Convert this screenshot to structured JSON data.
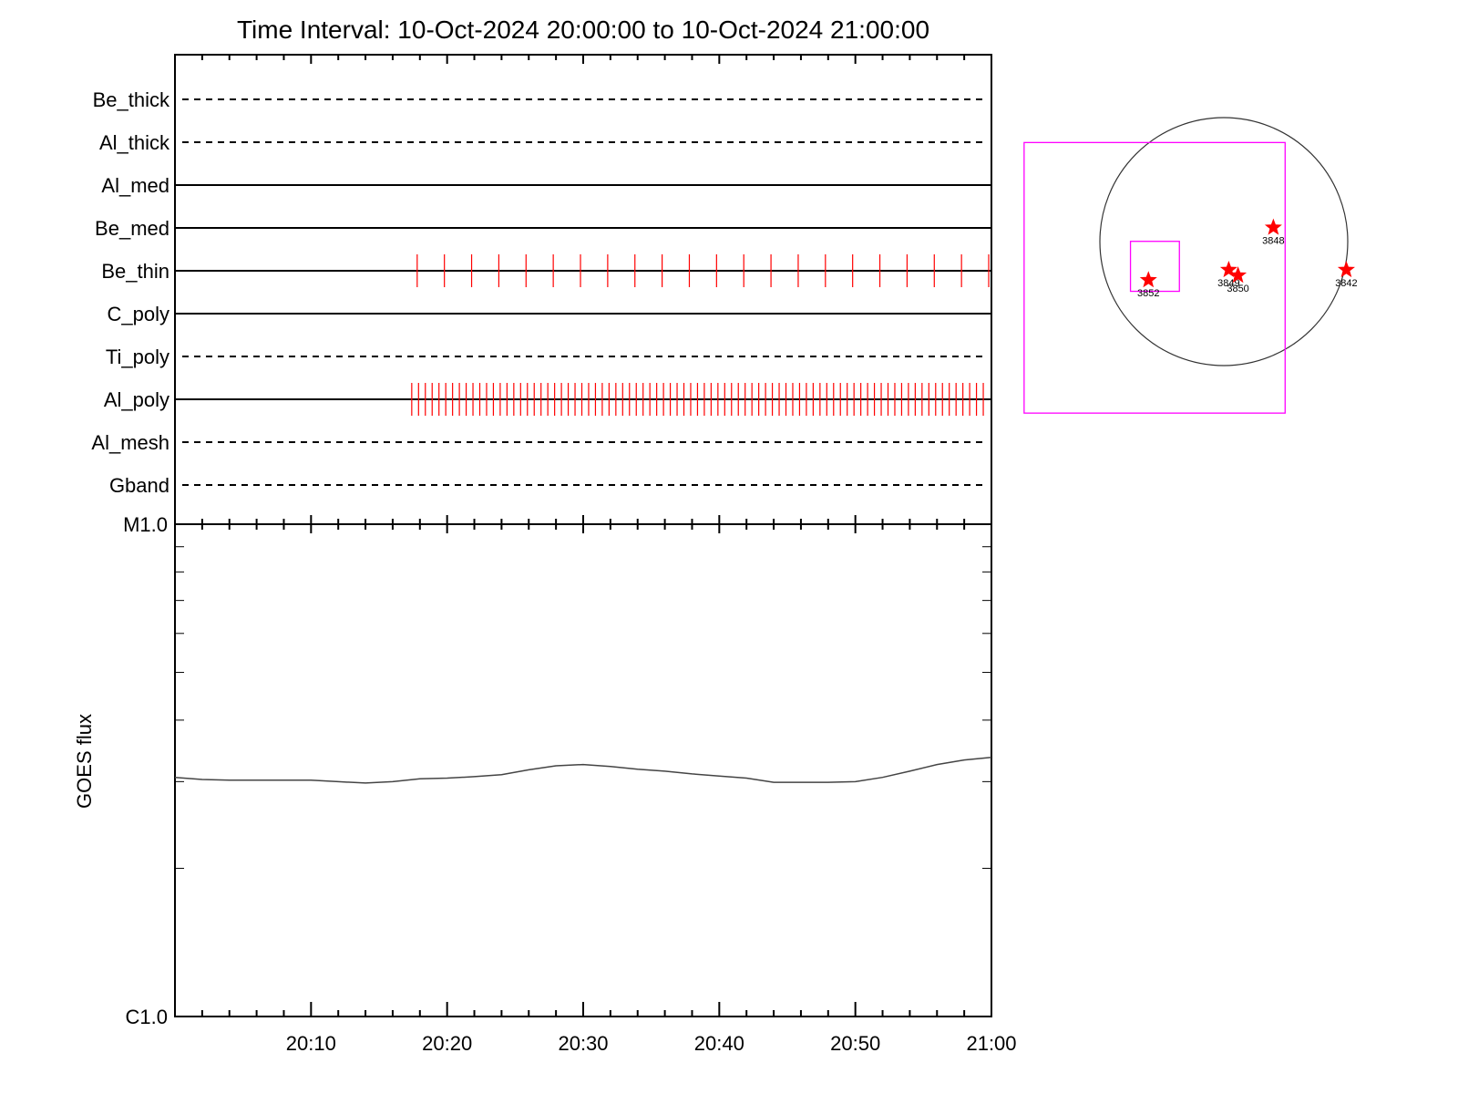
{
  "title": "Time Interval: 10-Oct-2024 20:00:00 to 10-Oct-2024 21:00:00",
  "colors": {
    "axis": "#000000",
    "filter_line": "#000000",
    "exposure_tick": "#ff0000",
    "goes_line": "#444444",
    "fov_box": "#ff00ff",
    "sun_disk": "#333333",
    "star": "#ff0000"
  },
  "chart_data": [
    {
      "type": "timeline",
      "name": "filter-timeline",
      "x_unit": "minutes after 20:00",
      "xlim": [
        0,
        60
      ],
      "rows": [
        {
          "label": "Be_thick",
          "style": "dashed",
          "exposures": []
        },
        {
          "label": "Al_thick",
          "style": "dashed",
          "exposures": []
        },
        {
          "label": "Al_med",
          "style": "solid",
          "exposures": []
        },
        {
          "label": "Be_med",
          "style": "solid",
          "exposures": []
        },
        {
          "label": "Be_thin",
          "style": "solid",
          "exposures": [
            17.8,
            19.8,
            21.8,
            23.8,
            25.8,
            27.8,
            29.8,
            31.8,
            33.8,
            35.8,
            37.8,
            39.8,
            41.8,
            43.8,
            45.8,
            47.8,
            49.8,
            51.8,
            53.8,
            55.8,
            57.8,
            59.8
          ]
        },
        {
          "label": "C_poly",
          "style": "solid",
          "exposures": []
        },
        {
          "label": "Ti_poly",
          "style": "dashed",
          "exposures": []
        },
        {
          "label": "Al_poly",
          "style": "solid",
          "exposures": {
            "start": 17.4,
            "end": 59.7,
            "interval": 0.5
          }
        },
        {
          "label": "Al_mesh",
          "style": "dashed",
          "exposures": []
        },
        {
          "label": "Gband",
          "style": "dashed",
          "exposures": []
        }
      ]
    },
    {
      "type": "line",
      "name": "goes-flux",
      "xlim": [
        0,
        60
      ],
      "x_ticks": [
        {
          "value": 10,
          "label": "20:10"
        },
        {
          "value": 20,
          "label": "20:20"
        },
        {
          "value": 30,
          "label": "20:30"
        },
        {
          "value": 40,
          "label": "20:40"
        },
        {
          "value": 50,
          "label": "20:50"
        },
        {
          "value": 60,
          "label": "21:00"
        }
      ],
      "ylabel": "GOES flux",
      "y_scale": "log",
      "ylim": [
        1e-06,
        1e-05
      ],
      "y_tick_labels": [
        {
          "value": 1e-05,
          "label": "M1.0"
        },
        {
          "value": 1e-06,
          "label": "C1.0"
        }
      ],
      "x": [
        0,
        2,
        4,
        6,
        8,
        10,
        12,
        14,
        16,
        18,
        20,
        22,
        24,
        26,
        28,
        30,
        32,
        34,
        36,
        38,
        40,
        42,
        44,
        46,
        48,
        50,
        52,
        54,
        56,
        58,
        60
      ],
      "values": [
        3.06e-06,
        3.03e-06,
        3.02e-06,
        3.02e-06,
        3.02e-06,
        3.02e-06,
        3e-06,
        2.98e-06,
        3e-06,
        3.04e-06,
        3.05e-06,
        3.07e-06,
        3.1e-06,
        3.17e-06,
        3.23e-06,
        3.25e-06,
        3.22e-06,
        3.18e-06,
        3.15e-06,
        3.11e-06,
        3.08e-06,
        3.05e-06,
        2.99e-06,
        2.99e-06,
        2.99e-06,
        3e-06,
        3.06e-06,
        3.15e-06,
        3.25e-06,
        3.32e-06,
        3.36e-06
      ]
    },
    {
      "type": "scatter",
      "name": "sun-context-map",
      "x_unit": "arcsec",
      "y_unit": "arcsec",
      "disk_radius": 960,
      "points": [
        {
          "label": "3852",
          "x": -584,
          "y": -298
        },
        {
          "label": "3849",
          "x": 38,
          "y": -219
        },
        {
          "label": "3850",
          "x": 110,
          "y": -262
        },
        {
          "label": "3848",
          "x": 384,
          "y": 109
        },
        {
          "label": "3842",
          "x": 949,
          "y": -219
        }
      ],
      "fov_boxes": [
        {
          "x": [
            -1547,
            475
          ],
          "y": [
            -1328,
            767
          ]
        },
        {
          "x": [
            -723,
            -344
          ],
          "y": [
            -385,
            2
          ]
        }
      ]
    }
  ]
}
